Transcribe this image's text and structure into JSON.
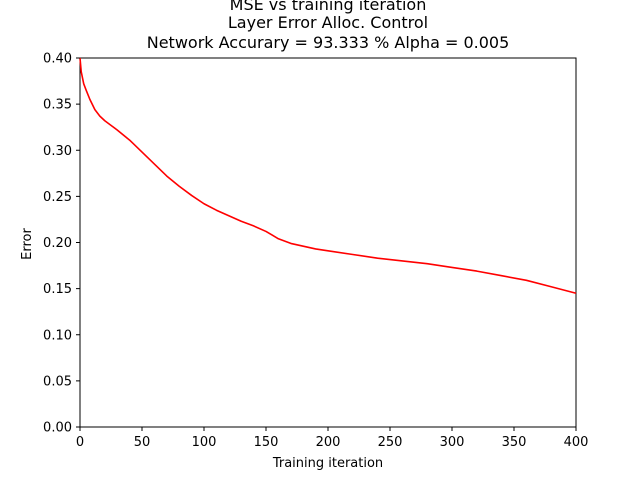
{
  "chart_data": {
    "type": "line",
    "title_lines": [
      "MSE vs training iteration",
      "Layer Error Alloc. Control",
      "Network Accurary = 93.333 % Alpha =  0.005"
    ],
    "xlabel": "Training iteration",
    "ylabel": "Error",
    "xlim": [
      0,
      400
    ],
    "ylim": [
      0.0,
      0.4
    ],
    "x_ticks": [
      0,
      50,
      100,
      150,
      200,
      250,
      300,
      350,
      400
    ],
    "y_ticks": [
      0.0,
      0.05,
      0.1,
      0.15,
      0.2,
      0.25,
      0.3,
      0.35,
      0.4
    ],
    "x_tick_labels": [
      "0",
      "50",
      "100",
      "150",
      "200",
      "250",
      "300",
      "350",
      "400"
    ],
    "y_tick_labels": [
      "0.00",
      "0.05",
      "0.10",
      "0.15",
      "0.20",
      "0.25",
      "0.30",
      "0.35",
      "0.40"
    ],
    "grid": false,
    "legend": "none",
    "series": [
      {
        "color": "#ff0000",
        "x": [
          0,
          1,
          3,
          5,
          8,
          12,
          16,
          20,
          25,
          30,
          40,
          50,
          60,
          70,
          80,
          90,
          100,
          110,
          120,
          130,
          140,
          150,
          155,
          160,
          170,
          180,
          190,
          200,
          220,
          240,
          260,
          280,
          300,
          320,
          340,
          360,
          380,
          400
        ],
        "y": [
          0.4,
          0.385,
          0.372,
          0.365,
          0.355,
          0.344,
          0.337,
          0.332,
          0.327,
          0.322,
          0.311,
          0.298,
          0.285,
          0.272,
          0.261,
          0.251,
          0.242,
          0.235,
          0.229,
          0.223,
          0.218,
          0.212,
          0.208,
          0.204,
          0.199,
          0.196,
          0.193,
          0.191,
          0.187,
          0.183,
          0.18,
          0.177,
          0.173,
          0.169,
          0.164,
          0.159,
          0.152,
          0.145
        ]
      }
    ]
  }
}
